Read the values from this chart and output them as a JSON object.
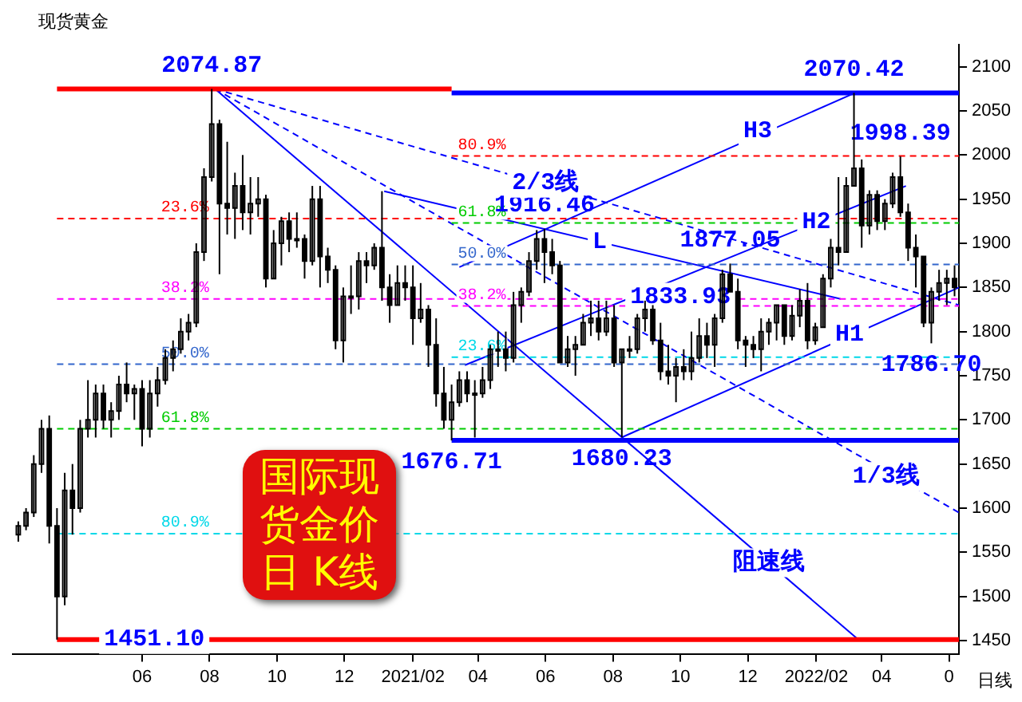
{
  "chart_data": {
    "type": "candlestick",
    "title": "国际现货金价日 K线",
    "subtitle": "现货黄金",
    "color": "#000000",
    "x": [
      "2020-02-10",
      "2020-02-17",
      "2020-02-24",
      "2020-03-02",
      "2020-03-09",
      "2020-03-16",
      "2020-03-23",
      "2020-03-30",
      "2020-04-06",
      "2020-04-13",
      "2020-04-20",
      "2020-04-27",
      "2020-05-04",
      "2020-05-11",
      "2020-05-18",
      "2020-05-25",
      "2020-06-01",
      "2020-06-08",
      "2020-06-15",
      "2020-06-22",
      "2020-06-29",
      "2020-07-06",
      "2020-07-13",
      "2020-07-20",
      "2020-07-27",
      "2020-08-03",
      "2020-08-10",
      "2020-08-17",
      "2020-08-24",
      "2020-08-31",
      "2020-09-07",
      "2020-09-14",
      "2020-09-21",
      "2020-09-28",
      "2020-10-05",
      "2020-10-12",
      "2020-10-19",
      "2020-10-26",
      "2020-11-02",
      "2020-11-09",
      "2020-11-16",
      "2020-11-23",
      "2020-11-30",
      "2020-12-07",
      "2020-12-14",
      "2020-12-21",
      "2020-12-28",
      "2021-01-04",
      "2021-01-11",
      "2021-01-18",
      "2021-01-25",
      "2021-02-01",
      "2021-02-08",
      "2021-02-15",
      "2021-02-22",
      "2021-03-01",
      "2021-03-08",
      "2021-03-15",
      "2021-03-22",
      "2021-03-29",
      "2021-04-05",
      "2021-04-12",
      "2021-04-19",
      "2021-04-26",
      "2021-05-03",
      "2021-05-10",
      "2021-05-17",
      "2021-05-24",
      "2021-05-31",
      "2021-06-07",
      "2021-06-14",
      "2021-06-21",
      "2021-06-28",
      "2021-07-05",
      "2021-07-12",
      "2021-07-19",
      "2021-07-26",
      "2021-08-02",
      "2021-08-09",
      "2021-08-16",
      "2021-08-23",
      "2021-08-30",
      "2021-09-06",
      "2021-09-13",
      "2021-09-20",
      "2021-09-27",
      "2021-10-04",
      "2021-10-11",
      "2021-10-18",
      "2021-10-25",
      "2021-11-01",
      "2021-11-08",
      "2021-11-15",
      "2021-11-22",
      "2021-11-29",
      "2021-12-06",
      "2021-12-13",
      "2021-12-20",
      "2021-12-27",
      "2022-01-03",
      "2022-01-10",
      "2022-01-17",
      "2022-01-24",
      "2022-01-31",
      "2022-02-07",
      "2022-02-14",
      "2022-02-21",
      "2022-02-28",
      "2022-03-07",
      "2022-03-14",
      "2022-03-21",
      "2022-03-28",
      "2022-04-04",
      "2022-04-11",
      "2022-04-18",
      "2022-04-25",
      "2022-05-02",
      "2022-05-09",
      "2022-05-16",
      "2022-05-23",
      "2022-05-30",
      "2022-06-06"
    ],
    "ohlc": [
      [
        1570,
        1585,
        1562,
        1580
      ],
      [
        1580,
        1600,
        1575,
        1595
      ],
      [
        1595,
        1660,
        1590,
        1650
      ],
      [
        1650,
        1700,
        1640,
        1690
      ],
      [
        1690,
        1705,
        1560,
        1580
      ],
      [
        1580,
        1600,
        1451.1,
        1500
      ],
      [
        1500,
        1640,
        1490,
        1620
      ],
      [
        1620,
        1650,
        1570,
        1600
      ],
      [
        1600,
        1700,
        1595,
        1690
      ],
      [
        1690,
        1745,
        1680,
        1700
      ],
      [
        1700,
        1740,
        1680,
        1730
      ],
      [
        1730,
        1740,
        1690,
        1700
      ],
      [
        1700,
        1720,
        1680,
        1710
      ],
      [
        1710,
        1750,
        1700,
        1740
      ],
      [
        1740,
        1765,
        1720,
        1730
      ],
      [
        1730,
        1740,
        1700,
        1735
      ],
      [
        1735,
        1745,
        1670,
        1690
      ],
      [
        1690,
        1745,
        1680,
        1730
      ],
      [
        1730,
        1760,
        1715,
        1745
      ],
      [
        1745,
        1780,
        1740,
        1770
      ],
      [
        1770,
        1790,
        1755,
        1780
      ],
      [
        1780,
        1815,
        1775,
        1800
      ],
      [
        1800,
        1820,
        1790,
        1810
      ],
      [
        1810,
        1900,
        1805,
        1890
      ],
      [
        1890,
        1985,
        1880,
        1975
      ],
      [
        1975,
        2074.87,
        1970,
        2035
      ],
      [
        2035,
        2040,
        1865,
        1945
      ],
      [
        1945,
        2015,
        1910,
        1940
      ],
      [
        1940,
        1980,
        1905,
        1965
      ],
      [
        1965,
        2000,
        1915,
        1935
      ],
      [
        1935,
        1975,
        1910,
        1945
      ],
      [
        1945,
        1975,
        1930,
        1950
      ],
      [
        1950,
        1955,
        1850,
        1860
      ],
      [
        1860,
        1915,
        1860,
        1900
      ],
      [
        1900,
        1930,
        1875,
        1925
      ],
      [
        1925,
        1935,
        1890,
        1905
      ],
      [
        1905,
        1935,
        1895,
        1905
      ],
      [
        1905,
        1910,
        1860,
        1880
      ],
      [
        1880,
        1965,
        1875,
        1950
      ],
      [
        1950,
        1965,
        1850,
        1885
      ],
      [
        1885,
        1895,
        1855,
        1870
      ],
      [
        1870,
        1875,
        1780,
        1790
      ],
      [
        1790,
        1850,
        1765,
        1840
      ],
      [
        1840,
        1875,
        1820,
        1840
      ],
      [
        1840,
        1890,
        1825,
        1880
      ],
      [
        1880,
        1890,
        1855,
        1875
      ],
      [
        1875,
        1900,
        1870,
        1895
      ],
      [
        1895,
        1959,
        1835,
        1850
      ],
      [
        1850,
        1865,
        1810,
        1830
      ],
      [
        1830,
        1875,
        1830,
        1855
      ],
      [
        1855,
        1875,
        1835,
        1850
      ],
      [
        1850,
        1875,
        1785,
        1815
      ],
      [
        1815,
        1855,
        1810,
        1825
      ],
      [
        1825,
        1830,
        1760,
        1785
      ],
      [
        1785,
        1815,
        1715,
        1730
      ],
      [
        1730,
        1760,
        1690,
        1700
      ],
      [
        1700,
        1740,
        1676.71,
        1720
      ],
      [
        1720,
        1755,
        1715,
        1745
      ],
      [
        1745,
        1755,
        1720,
        1730
      ],
      [
        1730,
        1745,
        1680,
        1730
      ],
      [
        1730,
        1760,
        1725,
        1745
      ],
      [
        1745,
        1785,
        1735,
        1780
      ],
      [
        1780,
        1800,
        1760,
        1780
      ],
      [
        1780,
        1800,
        1755,
        1770
      ],
      [
        1770,
        1845,
        1765,
        1830
      ],
      [
        1830,
        1850,
        1810,
        1845
      ],
      [
        1845,
        1890,
        1840,
        1880
      ],
      [
        1880,
        1915,
        1870,
        1905
      ],
      [
        1905,
        1916.46,
        1855,
        1890
      ],
      [
        1890,
        1905,
        1865,
        1875
      ],
      [
        1875,
        1880,
        1765,
        1765
      ],
      [
        1765,
        1795,
        1760,
        1780
      ],
      [
        1780,
        1795,
        1750,
        1785
      ],
      [
        1785,
        1820,
        1785,
        1810
      ],
      [
        1810,
        1835,
        1795,
        1815
      ],
      [
        1815,
        1835,
        1790,
        1800
      ],
      [
        1800,
        1835,
        1795,
        1815
      ],
      [
        1815,
        1830,
        1760,
        1765
      ],
      [
        1765,
        1780,
        1680.23,
        1780
      ],
      [
        1780,
        1795,
        1770,
        1780
      ],
      [
        1780,
        1820,
        1775,
        1815
      ],
      [
        1815,
        1835,
        1800,
        1825
      ],
      [
        1825,
        1830,
        1785,
        1790
      ],
      [
        1790,
        1810,
        1745,
        1755
      ],
      [
        1755,
        1785,
        1740,
        1750
      ],
      [
        1750,
        1770,
        1720,
        1760
      ],
      [
        1760,
        1780,
        1745,
        1755
      ],
      [
        1755,
        1800,
        1745,
        1770
      ],
      [
        1770,
        1815,
        1765,
        1795
      ],
      [
        1795,
        1810,
        1770,
        1785
      ],
      [
        1785,
        1820,
        1760,
        1815
      ],
      [
        1815,
        1870,
        1810,
        1865
      ],
      [
        1865,
        1877.05,
        1845,
        1845
      ],
      [
        1845,
        1860,
        1780,
        1790
      ],
      [
        1790,
        1795,
        1760,
        1785
      ],
      [
        1785,
        1795,
        1770,
        1780
      ],
      [
        1780,
        1815,
        1755,
        1800
      ],
      [
        1800,
        1815,
        1785,
        1810
      ],
      [
        1810,
        1830,
        1790,
        1830
      ],
      [
        1830,
        1830,
        1785,
        1795
      ],
      [
        1795,
        1830,
        1790,
        1818
      ],
      [
        1818,
        1848,
        1805,
        1835
      ],
      [
        1835,
        1855,
        1780,
        1790
      ],
      [
        1790,
        1810,
        1785,
        1805
      ],
      [
        1805,
        1865,
        1805,
        1860
      ],
      [
        1860,
        1905,
        1850,
        1895
      ],
      [
        1895,
        1975,
        1875,
        1890
      ],
      [
        1890,
        1975,
        1890,
        1965
      ],
      [
        1965,
        2070.42,
        1965,
        1985
      ],
      [
        1985,
        1995,
        1895,
        1920
      ],
      [
        1920,
        1960,
        1910,
        1955
      ],
      [
        1955,
        1960,
        1915,
        1925
      ],
      [
        1925,
        1950,
        1915,
        1945
      ],
      [
        1945,
        1980,
        1940,
        1975
      ],
      [
        1975,
        1998.39,
        1930,
        1935
      ],
      [
        1935,
        1945,
        1880,
        1895
      ],
      [
        1895,
        1910,
        1850,
        1885
      ],
      [
        1885,
        1885,
        1805,
        1810
      ],
      [
        1810,
        1850,
        1786.7,
        1845
      ],
      [
        1845,
        1870,
        1835,
        1855
      ],
      [
        1855,
        1870,
        1830,
        1860
      ],
      [
        1860,
        1875,
        1840,
        1850
      ]
    ],
    "series": [
      {
        "type": "line",
        "color": "#ff0000",
        "line_style": "solid",
        "x": [
          "2020-03-16",
          "2021-03-08"
        ],
        "values": [
          2074.87,
          2074.87
        ]
      },
      {
        "type": "line",
        "color": "#0000ff",
        "line_style": "solid",
        "x": [
          "2021-03-08",
          "2022-06-10"
        ],
        "values": [
          2070.42,
          2070.42
        ]
      },
      {
        "type": "line",
        "color": "#0000ff",
        "line_style": "solid",
        "x": [
          "2021-03-08",
          "2022-06-10"
        ],
        "values": [
          1676.71,
          1676.71
        ]
      },
      {
        "type": "line",
        "color": "#ff0000",
        "line_style": "solid",
        "x": [
          "2020-03-16",
          "2022-06-10"
        ],
        "values": [
          1451.1,
          1451.1
        ]
      },
      {
        "name": "23.6%",
        "type": "line",
        "color": "#ff0000",
        "line_style": "dashed",
        "x": [
          "2020-03-16",
          "2022-06-10"
        ],
        "values": [
          1928,
          1928
        ]
      },
      {
        "name": "38.2%",
        "type": "line",
        "color": "#ff00ff",
        "line_style": "dashed",
        "x": [
          "2020-03-16",
          "2022-06-10"
        ],
        "values": [
          1837,
          1837
        ]
      },
      {
        "name": "50.0%",
        "type": "line",
        "color": "#3366cc",
        "line_style": "dashed",
        "x": [
          "2020-03-16",
          "2022-06-10"
        ],
        "values": [
          1763,
          1763
        ]
      },
      {
        "name": "61.8%",
        "type": "line",
        "color": "#00cc00",
        "line_style": "dashed",
        "x": [
          "2020-03-16",
          "2022-06-10"
        ],
        "values": [
          1690,
          1690
        ]
      },
      {
        "name": "80.9%",
        "type": "line",
        "color": "#00d8e8",
        "line_style": "dashed",
        "x": [
          "2020-03-16",
          "2022-06-10"
        ],
        "values": [
          1571,
          1571
        ]
      },
      {
        "name": "80.9%",
        "type": "line",
        "color": "#ff0000",
        "line_style": "dashed",
        "x": [
          "2021-03-08",
          "2022-06-10"
        ],
        "values": [
          1999,
          1999
        ]
      },
      {
        "name": "61.8%",
        "type": "line",
        "color": "#00cc00",
        "line_style": "dashed",
        "x": [
          "2021-03-08",
          "2022-06-10"
        ],
        "values": [
          1923,
          1923
        ]
      },
      {
        "name": "50.0%",
        "type": "line",
        "color": "#3366cc",
        "line_style": "dashed",
        "x": [
          "2021-03-08",
          "2022-06-10"
        ],
        "values": [
          1876,
          1876
        ]
      },
      {
        "name": "38.2%",
        "type": "line",
        "color": "#ff00ff",
        "line_style": "dashed",
        "x": [
          "2021-03-08",
          "2022-06-10"
        ],
        "values": [
          1829,
          1829
        ]
      },
      {
        "name": "23.6%",
        "type": "line",
        "color": "#00d8e8",
        "line_style": "dashed",
        "x": [
          "2021-03-08",
          "2022-06-10"
        ],
        "values": [
          1771,
          1771
        ]
      },
      {
        "type": "line",
        "color": "#0000ff",
        "line_style": "solid",
        "x": [
          "2020-08-06",
          "2022-03-12"
        ],
        "values": [
          2074.87,
          1450
        ]
      },
      {
        "type": "line",
        "color": "#0000ff",
        "line_style": "dashed",
        "x": [
          "2020-08-06",
          "2022-06-10"
        ],
        "values": [
          2074.87,
          1595
        ]
      },
      {
        "type": "line",
        "color": "#0000ff",
        "line_style": "dashed",
        "x": [
          "2020-08-06",
          "2022-06-10"
        ],
        "values": [
          2074.87,
          1830
        ]
      },
      {
        "type": "line",
        "color": "#0000ff",
        "line_style": "solid",
        "x": [
          "2021-01-06",
          "2022-02-23"
        ],
        "values": [
          1959,
          1837
        ]
      },
      {
        "type": "line",
        "color": "#0000ff",
        "line_style": "solid",
        "x": [
          "2021-08-09",
          "2022-06-10"
        ],
        "values": [
          1680.23,
          1850
        ]
      },
      {
        "type": "line",
        "color": "#0000ff",
        "line_style": "solid",
        "x": [
          "2021-03-20",
          "2022-04-23"
        ],
        "values": [
          1762,
          1965
        ]
      },
      {
        "type": "line",
        "color": "#0000ff",
        "line_style": "solid",
        "x": [
          "2021-03-15",
          "2022-03-08"
        ],
        "values": [
          1873,
          2070.42
        ]
      }
    ],
    "xlim": [
      "2020-02-05",
      "2022-06-10"
    ],
    "xticks": [
      {
        "value": "2020-06-01",
        "label": "06"
      },
      {
        "value": "2020-08-01",
        "label": "08"
      },
      {
        "value": "2020-10-01",
        "label": "10"
      },
      {
        "value": "2020-12-01",
        "label": "12"
      },
      {
        "value": "2021-02-01",
        "label": "2021/02"
      },
      {
        "value": "2021-04-01",
        "label": "04"
      },
      {
        "value": "2021-06-01",
        "label": "06"
      },
      {
        "value": "2021-08-01",
        "label": "08"
      },
      {
        "value": "2021-10-01",
        "label": "10"
      },
      {
        "value": "2021-12-01",
        "label": "12"
      },
      {
        "value": "2022-02-01",
        "label": "2022/02"
      },
      {
        "value": "2022-04-01",
        "label": "04"
      },
      {
        "value": "2022-06-01",
        "label": "0"
      }
    ],
    "ylim": [
      1435,
      2125
    ],
    "yticks": [
      1450,
      1500,
      1550,
      1600,
      1650,
      1700,
      1750,
      1800,
      1850,
      1900,
      1950,
      2000,
      2050,
      2100
    ],
    "grid": false,
    "legend": false,
    "annotations": [
      {
        "text": "2074.87",
        "x": "2020-08-03",
        "y": 2074.87
      },
      {
        "text": "2070.42",
        "x": "2022-03-07",
        "y": 2070.42
      },
      {
        "text": "1998.39",
        "x": "2022-04-18",
        "y": 1998.39
      },
      {
        "text": "1916.46",
        "x": "2021-05-31",
        "y": 1916.46
      },
      {
        "text": "1877.05",
        "x": "2021-11-15",
        "y": 1877.05
      },
      {
        "text": "1833.93",
        "x": "2021-10-01",
        "y": 1839
      },
      {
        "text": "1786.70",
        "x": "2022-05-16",
        "y": 1786.7
      },
      {
        "text": "1676.71",
        "x": "2021-03-08",
        "y": 1676.71
      },
      {
        "text": "1680.23",
        "x": "2021-08-09",
        "y": 1680.23
      },
      {
        "text": "1451.10",
        "x": "2020-06-12",
        "y": 1451.1
      },
      {
        "text": "H3",
        "x": "2021-12-10",
        "y": 2027
      },
      {
        "text": "2/3线",
        "x": "2021-06-01",
        "y": 1968
      },
      {
        "text": "L",
        "x": "2021-07-20",
        "y": 1901
      },
      {
        "text": "H2",
        "x": "2022-02-01",
        "y": 1924
      },
      {
        "text": "H1",
        "x": "2022-03-03",
        "y": 1797
      },
      {
        "text": "1/3线",
        "x": "2022-04-05",
        "y": 1636
      },
      {
        "text": "阻速线",
        "x": "2021-12-20",
        "y": 1538
      },
      "日线"
    ]
  }
}
